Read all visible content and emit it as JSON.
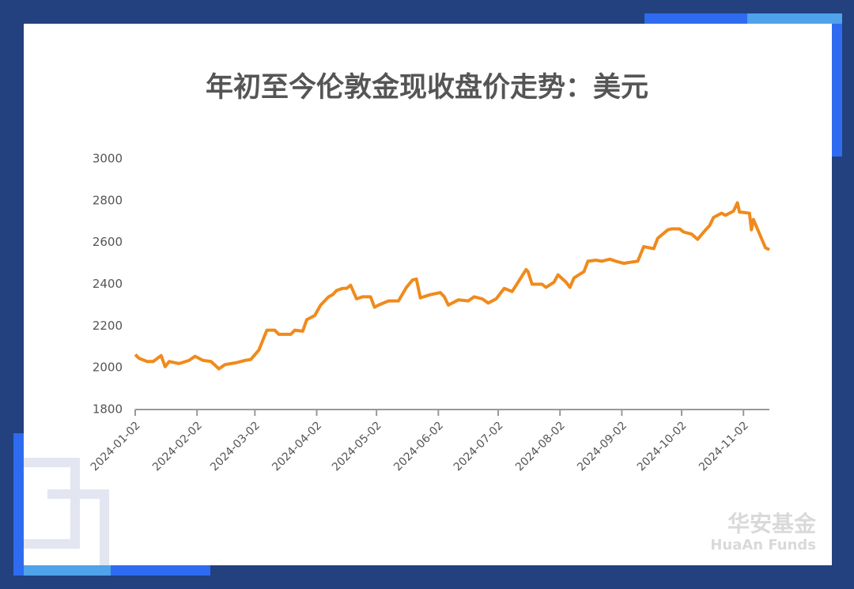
{
  "chart_data": {
    "type": "line",
    "title": "年初至今伦敦金现收盘价走势：美元",
    "x": [
      "2024-01-02",
      "2024-01-04",
      "2024-01-08",
      "2024-01-11",
      "2024-01-15",
      "2024-01-17",
      "2024-01-19",
      "2024-01-24",
      "2024-01-29",
      "2024-02-01",
      "2024-02-05",
      "2024-02-09",
      "2024-02-13",
      "2024-02-16",
      "2024-02-22",
      "2024-02-26",
      "2024-02-29",
      "2024-03-04",
      "2024-03-08",
      "2024-03-12",
      "2024-03-14",
      "2024-03-20",
      "2024-03-22",
      "2024-03-26",
      "2024-03-28",
      "2024-04-01",
      "2024-04-04",
      "2024-04-08",
      "2024-04-10",
      "2024-04-12",
      "2024-04-15",
      "2024-04-17",
      "2024-04-19",
      "2024-04-22",
      "2024-04-25",
      "2024-04-29",
      "2024-05-01",
      "2024-05-03",
      "2024-05-08",
      "2024-05-13",
      "2024-05-17",
      "2024-05-20",
      "2024-05-22",
      "2024-05-24",
      "2024-05-29",
      "2024-06-03",
      "2024-06-05",
      "2024-06-07",
      "2024-06-12",
      "2024-06-17",
      "2024-06-20",
      "2024-06-24",
      "2024-06-27",
      "2024-07-01",
      "2024-07-05",
      "2024-07-09",
      "2024-07-12",
      "2024-07-16",
      "2024-07-17",
      "2024-07-19",
      "2024-07-24",
      "2024-07-26",
      "2024-07-30",
      "2024-08-01",
      "2024-08-05",
      "2024-08-07",
      "2024-08-09",
      "2024-08-14",
      "2024-08-16",
      "2024-08-20",
      "2024-08-23",
      "2024-08-27",
      "2024-08-30",
      "2024-09-03",
      "2024-09-06",
      "2024-09-10",
      "2024-09-13",
      "2024-09-18",
      "2024-09-20",
      "2024-09-25",
      "2024-09-27",
      "2024-10-01",
      "2024-10-03",
      "2024-10-07",
      "2024-10-10",
      "2024-10-14",
      "2024-10-16",
      "2024-10-18",
      "2024-10-22",
      "2024-10-24",
      "2024-10-28",
      "2024-10-30",
      "2024-10-31",
      "2024-11-01",
      "2024-11-05",
      "2024-11-06",
      "2024-11-07",
      "2024-11-11",
      "2024-11-13",
      "2024-11-15"
    ],
    "series": [
      {
        "color": "#f08a1c",
        "values": [
          2063,
          2045,
          2030,
          2030,
          2058,
          2005,
          2030,
          2020,
          2035,
          2055,
          2035,
          2030,
          1995,
          2015,
          2025,
          2035,
          2040,
          2085,
          2180,
          2180,
          2160,
          2160,
          2180,
          2175,
          2230,
          2250,
          2300,
          2340,
          2350,
          2370,
          2380,
          2380,
          2395,
          2330,
          2340,
          2340,
          2290,
          2300,
          2320,
          2320,
          2385,
          2420,
          2425,
          2335,
          2350,
          2360,
          2340,
          2300,
          2325,
          2320,
          2340,
          2330,
          2310,
          2330,
          2380,
          2365,
          2410,
          2470,
          2460,
          2400,
          2400,
          2385,
          2410,
          2445,
          2410,
          2385,
          2430,
          2460,
          2510,
          2515,
          2510,
          2520,
          2510,
          2500,
          2505,
          2510,
          2580,
          2570,
          2620,
          2660,
          2665,
          2665,
          2650,
          2640,
          2615,
          2660,
          2680,
          2720,
          2740,
          2730,
          2750,
          2790,
          2745,
          2745,
          2740,
          2660,
          2710,
          2620,
          2575,
          2565
        ]
      }
    ],
    "xlim": [
      "2024-01-02",
      "2024-11-15"
    ],
    "xticks": [
      "2024-01-02",
      "2024-02-02",
      "2024-03-02",
      "2024-04-02",
      "2024-05-02",
      "2024-06-02",
      "2024-07-02",
      "2024-08-02",
      "2024-09-02",
      "2024-10-02",
      "2024-11-02"
    ],
    "ylim": [
      1800,
      3000
    ],
    "yticks": [
      1800,
      2000,
      2200,
      2400,
      2600,
      2800,
      3000
    ]
  },
  "watermark": {
    "name_cn": "华安基金",
    "name_en": "HuaAn Funds"
  }
}
